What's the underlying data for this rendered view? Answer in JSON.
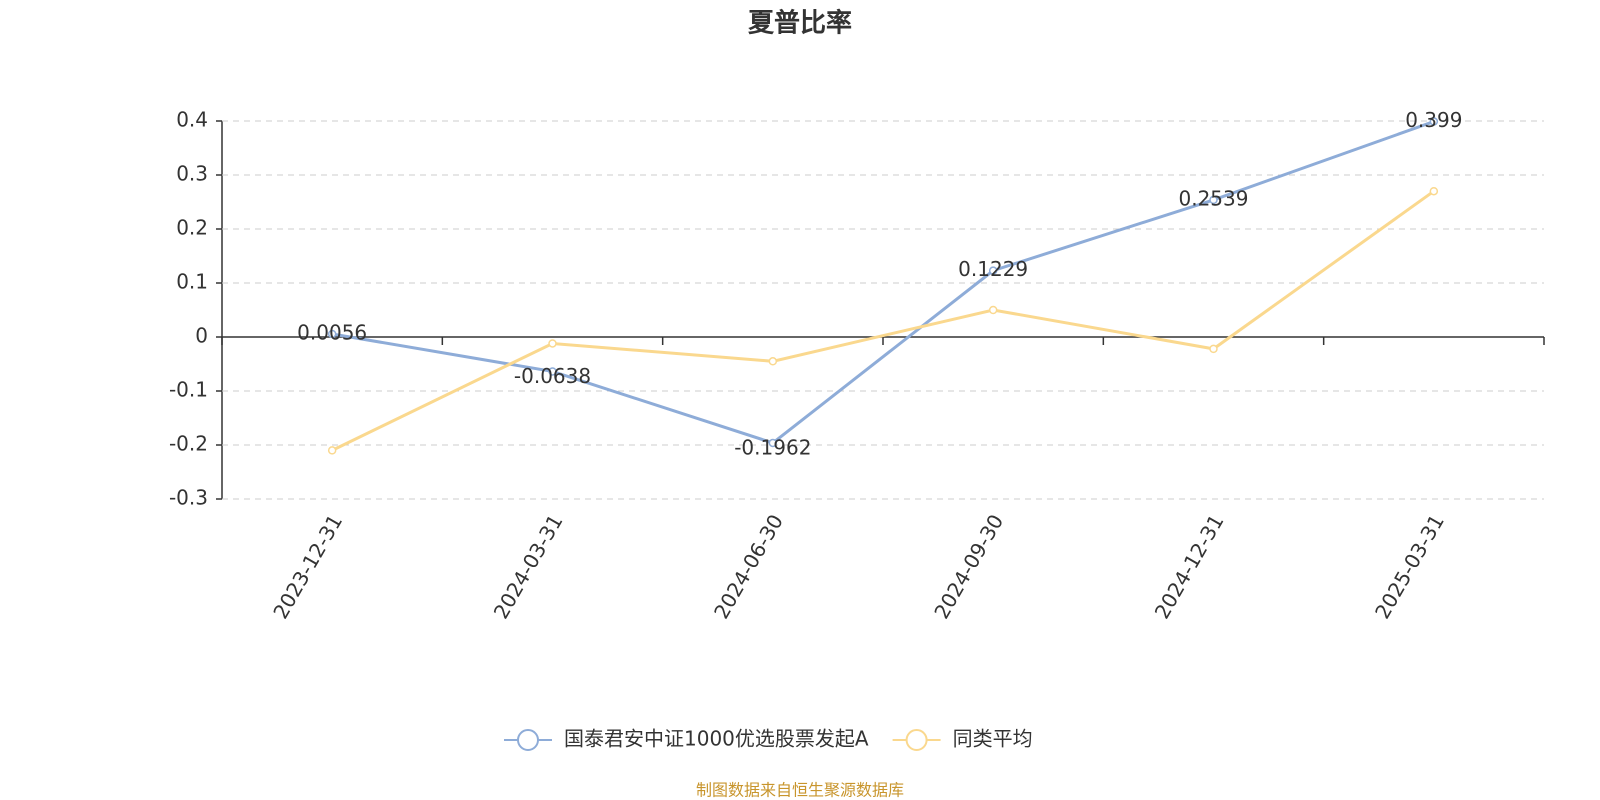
{
  "chart_data": {
    "type": "line",
    "title": "夏普比率",
    "categories": [
      "2023-12-31",
      "2024-03-31",
      "2024-06-30",
      "2024-09-30",
      "2024-12-31",
      "2025-03-31"
    ],
    "series": [
      {
        "name": "国泰君安中证1000优选股票发起A",
        "color": "#8eacd8",
        "values": [
          0.0056,
          -0.0638,
          -0.1962,
          0.1229,
          0.2539,
          0.399
        ],
        "show_labels": true
      },
      {
        "name": "同类平均",
        "color": "#fad88e",
        "values": [
          -0.21,
          -0.012,
          -0.045,
          0.05,
          -0.022,
          0.27
        ],
        "show_labels": false
      }
    ],
    "ylim": [
      -0.3,
      0.4
    ],
    "yticks": [
      -0.3,
      -0.2,
      -0.1,
      0,
      0.1,
      0.2,
      0.3,
      0.4
    ],
    "grid": true,
    "legend": "bottom",
    "source": "制图数据来自恒生聚源数据库"
  }
}
